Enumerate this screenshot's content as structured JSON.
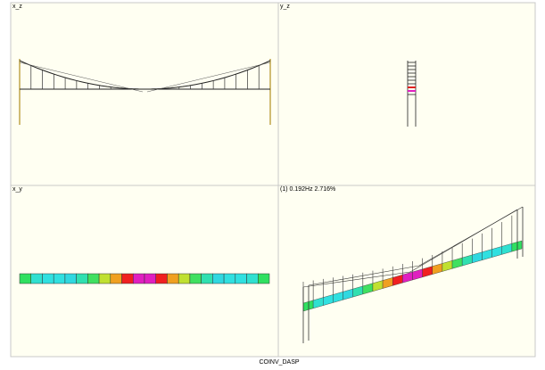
{
  "viewports": [
    {
      "label": "x_z"
    },
    {
      "label": "y_z"
    },
    {
      "label": "x_y"
    },
    {
      "label": "(1) 0.192Hz 2.716%"
    }
  ],
  "status": "COINV_DASP"
}
